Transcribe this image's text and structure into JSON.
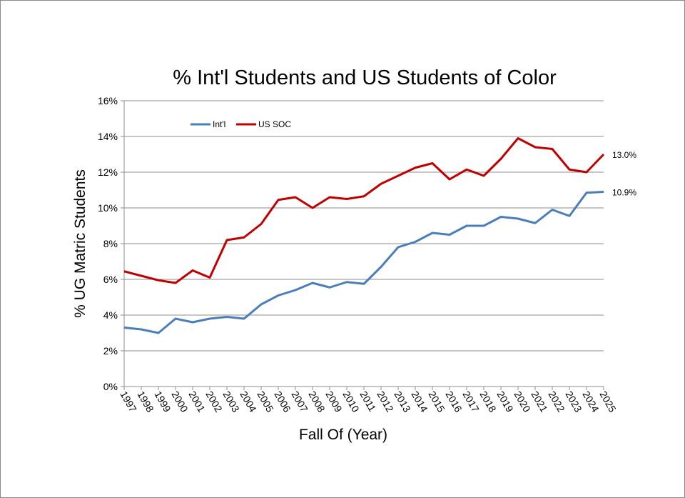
{
  "chart_data": {
    "type": "line",
    "title": "% Int'l Students and US Students of Color",
    "xlabel": "Fall Of (Year)",
    "ylabel": "% UG Matric Students",
    "categories": [
      "1997",
      "1998",
      "1999",
      "2000",
      "2001",
      "2002",
      "2003",
      "2004",
      "2005",
      "2006",
      "2007",
      "2008",
      "2009",
      "2010",
      "2011",
      "2012",
      "2013",
      "2014",
      "2015",
      "2016",
      "2017",
      "2018",
      "2019",
      "2020",
      "2021",
      "2022",
      "2023",
      "2024",
      "2025"
    ],
    "ylim": [
      0,
      16
    ],
    "yticks": [
      "0%",
      "2%",
      "4%",
      "6%",
      "8%",
      "10%",
      "12%",
      "14%",
      "16%"
    ],
    "grid": true,
    "legend_position": "top-left",
    "series": [
      {
        "name": "Int'l",
        "color": "#4a7ebb",
        "end_label": "10.9%",
        "values": [
          3.3,
          3.2,
          3.0,
          3.8,
          3.6,
          3.8,
          3.9,
          3.8,
          4.6,
          5.1,
          5.4,
          5.8,
          5.55,
          5.85,
          5.75,
          6.7,
          7.8,
          8.1,
          8.6,
          8.5,
          9.0,
          9.0,
          9.5,
          9.4,
          9.15,
          9.9,
          9.55,
          10.85,
          10.9
        ]
      },
      {
        "name": "US SOC",
        "color": "#c00000",
        "end_label": "13.0%",
        "values": [
          6.45,
          6.2,
          5.95,
          5.8,
          6.5,
          6.1,
          8.2,
          8.35,
          9.1,
          10.45,
          10.6,
          10.0,
          10.6,
          10.5,
          10.65,
          11.35,
          11.8,
          12.25,
          12.5,
          11.6,
          12.15,
          11.8,
          12.75,
          13.9,
          13.4,
          13.3,
          12.15,
          12.0,
          13.0
        ]
      }
    ]
  }
}
